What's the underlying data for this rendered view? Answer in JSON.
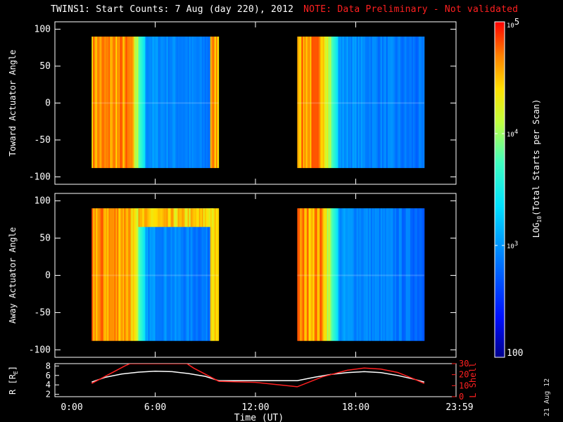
{
  "title": {
    "main": "TWINS1: Start Counts:  7 Aug (day 220), 2012",
    "note": "NOTE: Data Preliminary - Not validated"
  },
  "footer_stamp": "21 Aug 12",
  "colors": {
    "background": "#000000",
    "axes": "#ffffff",
    "note": "#ff2020",
    "lshell": "#ff2020",
    "radius": "#ffffff"
  },
  "chart_data": [
    {
      "type": "heatmap",
      "name": "toward-panel",
      "ylabel": "Toward Actuator Angle",
      "ylim": [
        -110,
        110
      ],
      "yticks": [
        100,
        50,
        0,
        -50,
        -100
      ],
      "xlim": [
        0,
        24
      ],
      "data_intervals_hours": [
        [
          2.2,
          9.8
        ],
        [
          14.5,
          22.1
        ]
      ],
      "angle_range": [
        -88,
        90
      ]
    },
    {
      "type": "heatmap",
      "name": "away-panel",
      "ylabel": "Away Actuator Angle",
      "ylim": [
        -110,
        110
      ],
      "yticks": [
        100,
        50,
        0,
        -50,
        -100
      ],
      "xlim": [
        0,
        24
      ],
      "data_intervals_hours": [
        [
          2.2,
          9.8
        ],
        [
          14.5,
          22.1
        ]
      ],
      "angle_range": [
        -88,
        90
      ]
    },
    {
      "type": "line",
      "name": "orbit-panel",
      "ylabel_left": "R [R",
      "ylabel_left_sub": "E",
      "ylabel_left_end": "]",
      "ylabel_right": "L Shell",
      "yticks_left": [
        8,
        6,
        4,
        2
      ],
      "ylim_left": [
        1.5,
        8.5
      ],
      "yticks_right": [
        30,
        20,
        10,
        0
      ],
      "ylim_right": [
        0,
        30
      ],
      "xlabel": "Time (UT)",
      "xticks": [
        "0:00",
        "6:00",
        "12:00",
        "18:00",
        "23:59"
      ],
      "xtick_values": [
        0,
        6,
        12,
        18,
        24
      ],
      "series": [
        {
          "axis": "left",
          "x": [
            2.2,
            3.0,
            4.0,
            5.0,
            6.0,
            7.0,
            8.0,
            9.0,
            9.8,
            12.0,
            14.5,
            15.5,
            16.5,
            17.5,
            18.5,
            19.5,
            20.5,
            21.5,
            22.1
          ],
          "y": [
            4.6,
            5.6,
            6.3,
            6.7,
            6.9,
            6.8,
            6.4,
            5.8,
            4.9,
            4.9,
            4.9,
            5.6,
            6.2,
            6.6,
            6.8,
            6.6,
            6.0,
            5.2,
            4.6
          ]
        },
        {
          "axis": "right",
          "x": [
            2.2,
            3.2,
            4.2,
            4.5,
            7.9,
            8.3,
            9.8,
            12.0,
            14.5,
            16.0,
            17.5,
            18.5,
            19.5,
            20.5,
            21.5,
            22.1
          ],
          "y": [
            12,
            20,
            28,
            30,
            30,
            26,
            14,
            13,
            9,
            18,
            24,
            26,
            25,
            22,
            16,
            12
          ]
        }
      ]
    }
  ],
  "colorbar": {
    "label": "LOG",
    "label_sub": "10",
    "label_end": "(Total Starts per Scan)",
    "ticks": [
      {
        "base": "10",
        "exp": "5",
        "value": 5
      },
      {
        "base": "10",
        "exp": "4",
        "value": 4
      },
      {
        "base": "10",
        "exp": "3",
        "value": 3
      },
      {
        "base": "100",
        "exp": "",
        "value": 2
      }
    ],
    "range": [
      2,
      5
    ]
  }
}
